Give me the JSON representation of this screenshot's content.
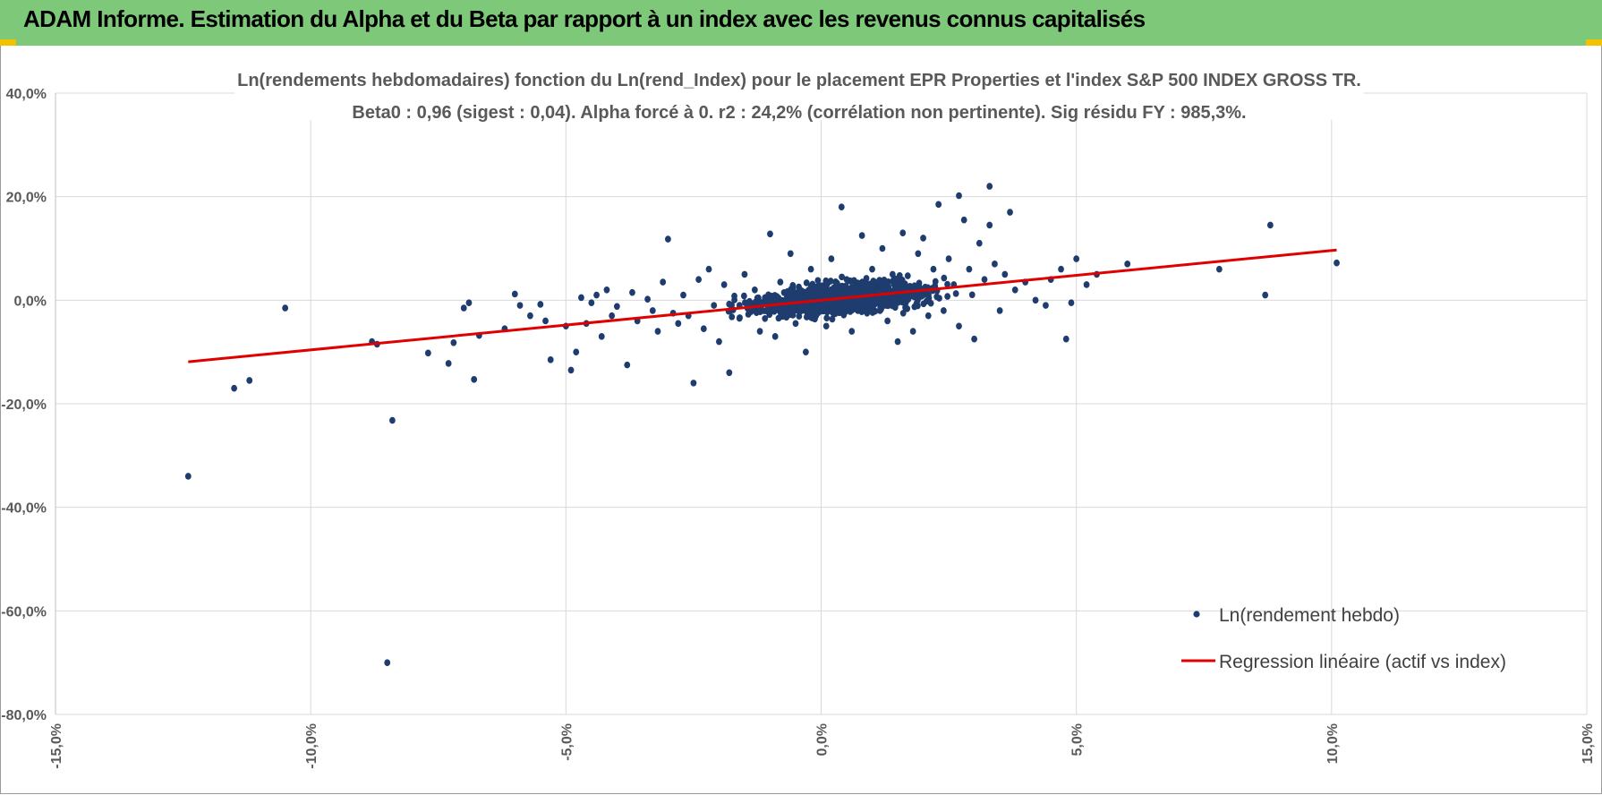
{
  "header": {
    "title": "ADAM Informe. Estimation du Alpha et du Beta par rapport à un index avec les revenus connus capitalisés"
  },
  "colors": {
    "header_bg": "#7ec87a",
    "accent_corner": "#f2c200",
    "points": "#1f3c6e",
    "regression": "#e00000",
    "grid": "#d9d9d9"
  },
  "chart_data": {
    "type": "scatter",
    "title_line1": "Ln(rendements hebdomadaires) fonction du Ln(rend_Index) pour le placement EPR Properties et l'index S&P 500 INDEX GROSS TR.",
    "title_line2": "Beta0 : 0,96 (sigest : 0,04).  Alpha forcé à 0. r2 : 24,2% (corrélation non pertinente). Sig résidu FY : 985,3%.",
    "xlim": [
      -0.15,
      0.15
    ],
    "ylim": [
      -0.8,
      0.4
    ],
    "x_ticks": [
      -0.15,
      -0.1,
      -0.05,
      0.0,
      0.05,
      0.1,
      0.15
    ],
    "x_tick_labels": [
      "-15,0%",
      "-10,0%",
      "-5,0%",
      "0,0%",
      "5,0%",
      "10,0%",
      "15,0%"
    ],
    "y_ticks": [
      0.4,
      0.2,
      0.0,
      -0.2,
      -0.4,
      -0.6,
      -0.8
    ],
    "y_tick_labels": [
      "40,0%",
      "20,0%",
      "0,0%",
      "-20,0%",
      "-40,0%",
      "-60,0%",
      "-80,0%"
    ],
    "grid": true,
    "legend_placement": "bottom-right",
    "series": [
      {
        "name": "Ln(rendement hebdo)",
        "kind": "scatter",
        "points": [
          [
            -0.124,
            -0.34
          ],
          [
            -0.115,
            -0.17
          ],
          [
            -0.112,
            -0.155
          ],
          [
            -0.105,
            -0.015
          ],
          [
            -0.085,
            -0.7
          ],
          [
            -0.084,
            -0.232
          ],
          [
            -0.088,
            -0.08
          ],
          [
            -0.087,
            -0.085
          ],
          [
            -0.077,
            -0.102
          ],
          [
            -0.073,
            -0.122
          ],
          [
            -0.072,
            -0.082
          ],
          [
            -0.07,
            -0.015
          ],
          [
            -0.069,
            -0.005
          ],
          [
            -0.068,
            -0.153
          ],
          [
            -0.067,
            -0.068
          ],
          [
            -0.062,
            -0.055
          ],
          [
            -0.06,
            0.012
          ],
          [
            -0.059,
            -0.01
          ],
          [
            -0.057,
            -0.03
          ],
          [
            -0.055,
            -0.008
          ],
          [
            -0.054,
            -0.04
          ],
          [
            -0.053,
            -0.115
          ],
          [
            -0.05,
            -0.05
          ],
          [
            -0.049,
            -0.135
          ],
          [
            -0.048,
            -0.1
          ],
          [
            -0.047,
            0.005
          ],
          [
            -0.046,
            -0.045
          ],
          [
            -0.045,
            -0.005
          ],
          [
            -0.044,
            0.01
          ],
          [
            -0.043,
            -0.07
          ],
          [
            -0.042,
            0.02
          ],
          [
            -0.041,
            -0.03
          ],
          [
            -0.04,
            -0.012
          ],
          [
            -0.038,
            -0.125
          ],
          [
            -0.037,
            0.015
          ],
          [
            -0.036,
            -0.04
          ],
          [
            -0.034,
            0.002
          ],
          [
            -0.033,
            -0.02
          ],
          [
            -0.032,
            -0.06
          ],
          [
            -0.031,
            0.035
          ],
          [
            -0.03,
            0.118
          ],
          [
            -0.029,
            -0.025
          ],
          [
            -0.028,
            -0.045
          ],
          [
            -0.027,
            0.01
          ],
          [
            -0.026,
            -0.03
          ],
          [
            -0.025,
            -0.16
          ],
          [
            -0.024,
            0.04
          ],
          [
            -0.023,
            -0.055
          ],
          [
            -0.022,
            0.06
          ],
          [
            -0.021,
            -0.01
          ],
          [
            -0.02,
            -0.08
          ],
          [
            -0.019,
            0.03
          ],
          [
            -0.018,
            -0.14
          ],
          [
            -0.017,
            0.008
          ],
          [
            -0.016,
            -0.035
          ],
          [
            -0.015,
            0.05
          ],
          [
            -0.014,
            -0.015
          ],
          [
            -0.013,
            0.02
          ],
          [
            -0.012,
            -0.06
          ],
          [
            -0.011,
            0.005
          ],
          [
            -0.01,
            0.128
          ],
          [
            -0.009,
            -0.07
          ],
          [
            -0.008,
            0.035
          ],
          [
            -0.007,
            -0.025
          ],
          [
            -0.006,
            0.09
          ],
          [
            -0.005,
            -0.045
          ],
          [
            -0.004,
            0.015
          ],
          [
            -0.003,
            -0.1
          ],
          [
            -0.002,
            0.06
          ],
          [
            -0.001,
            -0.03
          ],
          [
            0.0,
            0.01
          ],
          [
            0.001,
            -0.05
          ],
          [
            0.002,
            0.08
          ],
          [
            0.003,
            0.02
          ],
          [
            0.004,
            -0.015
          ],
          [
            0.004,
            0.18
          ],
          [
            0.005,
            0.04
          ],
          [
            0.006,
            -0.06
          ],
          [
            0.007,
            0.03
          ],
          [
            0.008,
            0.125
          ],
          [
            0.009,
            -0.025
          ],
          [
            0.01,
            0.06
          ],
          [
            0.011,
            0.0
          ],
          [
            0.012,
            0.1
          ],
          [
            0.013,
            -0.04
          ],
          [
            0.014,
            0.05
          ],
          [
            0.015,
            -0.08
          ],
          [
            0.016,
            0.13
          ],
          [
            0.017,
            0.02
          ],
          [
            0.018,
            -0.06
          ],
          [
            0.019,
            0.09
          ],
          [
            0.02,
            0.01
          ],
          [
            0.02,
            0.12
          ],
          [
            0.021,
            -0.03
          ],
          [
            0.022,
            0.06
          ],
          [
            0.023,
            0.185
          ],
          [
            0.024,
            -0.02
          ],
          [
            0.025,
            0.08
          ],
          [
            0.026,
            0.03
          ],
          [
            0.027,
            0.202
          ],
          [
            0.027,
            -0.05
          ],
          [
            0.028,
            0.155
          ],
          [
            0.029,
            0.06
          ],
          [
            0.03,
            -0.075
          ],
          [
            0.031,
            0.11
          ],
          [
            0.032,
            0.04
          ],
          [
            0.033,
            0.22
          ],
          [
            0.033,
            0.145
          ],
          [
            0.034,
            0.07
          ],
          [
            0.035,
            -0.02
          ],
          [
            0.036,
            0.05
          ],
          [
            0.037,
            0.17
          ],
          [
            0.038,
            0.02
          ],
          [
            0.04,
            0.035
          ],
          [
            0.042,
            0.0
          ],
          [
            0.044,
            -0.01
          ],
          [
            0.045,
            0.04
          ],
          [
            0.047,
            0.06
          ],
          [
            0.048,
            -0.075
          ],
          [
            0.049,
            -0.005
          ],
          [
            0.05,
            0.08
          ],
          [
            0.052,
            0.03
          ],
          [
            0.054,
            0.05
          ],
          [
            0.06,
            0.07
          ],
          [
            0.078,
            0.06
          ],
          [
            0.087,
            0.01
          ],
          [
            0.088,
            0.145
          ],
          [
            0.101,
            0.072
          ]
        ]
      },
      {
        "name": "Regression linéaire (actif vs index)",
        "kind": "line",
        "points": [
          [
            -0.124,
            -0.119
          ],
          [
            0.101,
            0.097
          ]
        ]
      }
    ]
  }
}
